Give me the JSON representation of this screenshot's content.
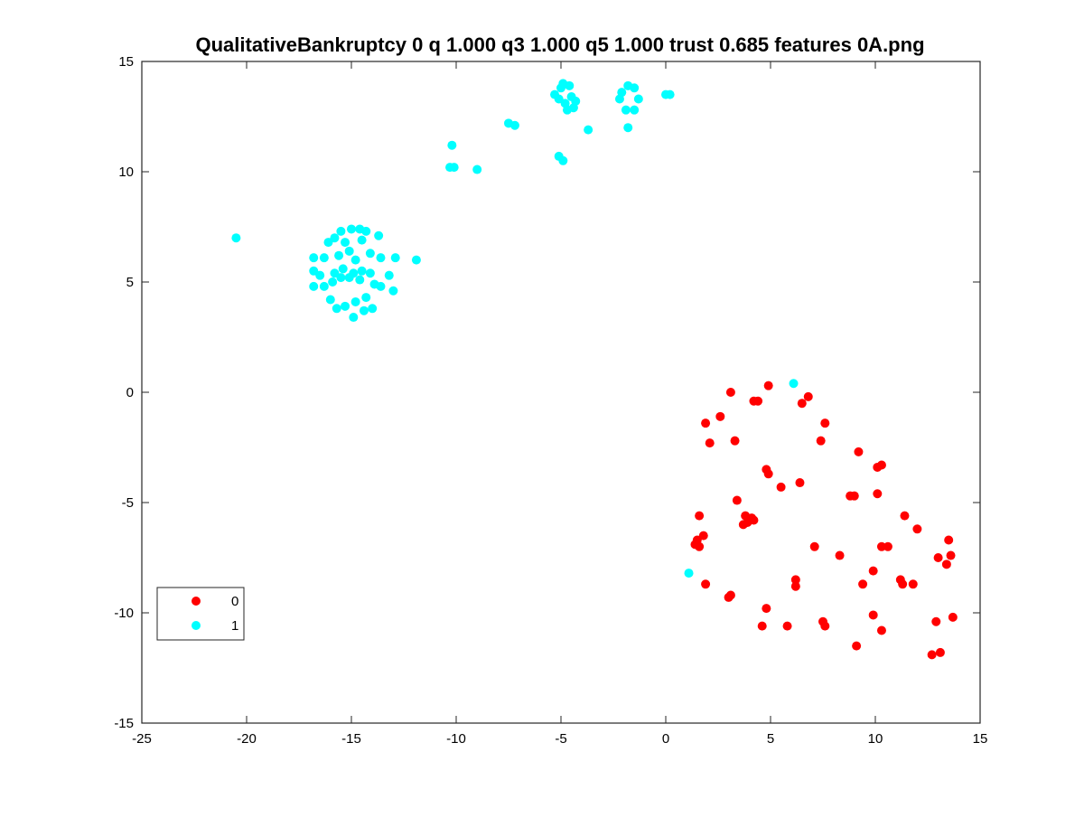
{
  "chart_data": {
    "type": "scatter",
    "title": "QualitativeBankruptcy 0 q 1.000 q3 1.000 q5 1.000 trust 0.685 features 0A.png",
    "xlabel": "",
    "ylabel": "",
    "xlim": [
      -25,
      15
    ],
    "ylim": [
      -15,
      15
    ],
    "xticks": [
      -25,
      -20,
      -15,
      -10,
      -5,
      0,
      5,
      10,
      15
    ],
    "yticks": [
      -15,
      -10,
      -5,
      0,
      5,
      10,
      15
    ],
    "grid": false,
    "legend_position": "bottom-left",
    "series": [
      {
        "name": "0",
        "color": "#ff0000",
        "points": [
          [
            3.1,
            0.0
          ],
          [
            4.9,
            0.3
          ],
          [
            4.2,
            -0.4
          ],
          [
            4.4,
            -0.4
          ],
          [
            6.8,
            -0.2
          ],
          [
            6.5,
            -0.5
          ],
          [
            1.9,
            -1.4
          ],
          [
            2.6,
            -1.1
          ],
          [
            7.6,
            -1.4
          ],
          [
            2.1,
            -2.3
          ],
          [
            3.3,
            -2.2
          ],
          [
            7.4,
            -2.2
          ],
          [
            9.2,
            -2.7
          ],
          [
            4.8,
            -3.5
          ],
          [
            4.9,
            -3.7
          ],
          [
            10.3,
            -3.3
          ],
          [
            10.1,
            -3.4
          ],
          [
            6.4,
            -4.1
          ],
          [
            5.5,
            -4.3
          ],
          [
            8.8,
            -4.7
          ],
          [
            9.0,
            -4.7
          ],
          [
            10.1,
            -4.6
          ],
          [
            3.4,
            -4.9
          ],
          [
            1.6,
            -5.6
          ],
          [
            3.8,
            -5.6
          ],
          [
            4.1,
            -5.7
          ],
          [
            3.9,
            -5.9
          ],
          [
            3.7,
            -6.0
          ],
          [
            4.2,
            -5.8
          ],
          [
            11.4,
            -5.6
          ],
          [
            12.0,
            -6.2
          ],
          [
            1.8,
            -6.5
          ],
          [
            1.5,
            -6.7
          ],
          [
            1.4,
            -6.9
          ],
          [
            1.6,
            -7.0
          ],
          [
            7.1,
            -7.0
          ],
          [
            10.3,
            -7.0
          ],
          [
            10.6,
            -7.0
          ],
          [
            13.5,
            -6.7
          ],
          [
            8.3,
            -7.4
          ],
          [
            13.0,
            -7.5
          ],
          [
            13.6,
            -7.4
          ],
          [
            13.4,
            -7.8
          ],
          [
            9.9,
            -8.1
          ],
          [
            6.2,
            -8.5
          ],
          [
            11.2,
            -8.5
          ],
          [
            1.9,
            -8.7
          ],
          [
            6.2,
            -8.8
          ],
          [
            9.4,
            -8.7
          ],
          [
            11.3,
            -8.7
          ],
          [
            11.8,
            -8.7
          ],
          [
            3.1,
            -9.2
          ],
          [
            3.0,
            -9.3
          ],
          [
            4.8,
            -9.8
          ],
          [
            9.9,
            -10.1
          ],
          [
            13.7,
            -10.2
          ],
          [
            7.5,
            -10.4
          ],
          [
            12.9,
            -10.4
          ],
          [
            4.6,
            -10.6
          ],
          [
            5.8,
            -10.6
          ],
          [
            7.6,
            -10.6
          ],
          [
            10.3,
            -10.8
          ],
          [
            9.1,
            -11.5
          ],
          [
            12.7,
            -11.9
          ],
          [
            13.1,
            -11.8
          ]
        ]
      },
      {
        "name": "1",
        "color": "#00ffff",
        "points": [
          [
            -5.3,
            13.5
          ],
          [
            -5.0,
            13.8
          ],
          [
            -4.9,
            14.0
          ],
          [
            -4.6,
            13.9
          ],
          [
            -5.1,
            13.3
          ],
          [
            -4.8,
            13.1
          ],
          [
            -4.5,
            13.4
          ],
          [
            -4.3,
            13.2
          ],
          [
            -4.7,
            12.8
          ],
          [
            -4.4,
            12.9
          ],
          [
            -2.1,
            13.6
          ],
          [
            -1.8,
            13.9
          ],
          [
            -1.5,
            13.8
          ],
          [
            -2.2,
            13.3
          ],
          [
            -1.3,
            13.3
          ],
          [
            -1.9,
            12.8
          ],
          [
            -1.5,
            12.8
          ],
          [
            0.0,
            13.5
          ],
          [
            0.2,
            13.5
          ],
          [
            -7.5,
            12.2
          ],
          [
            -7.2,
            12.1
          ],
          [
            -3.7,
            11.9
          ],
          [
            -1.8,
            12.0
          ],
          [
            -10.2,
            11.2
          ],
          [
            -10.3,
            10.2
          ],
          [
            -10.1,
            10.2
          ],
          [
            -9.0,
            10.1
          ],
          [
            -5.1,
            10.7
          ],
          [
            -4.9,
            10.5
          ],
          [
            -20.5,
            7.0
          ],
          [
            -11.9,
            6.0
          ],
          [
            -15.5,
            7.3
          ],
          [
            -15.0,
            7.4
          ],
          [
            -14.6,
            7.4
          ],
          [
            -14.3,
            7.3
          ],
          [
            -15.8,
            7.0
          ],
          [
            -15.3,
            6.8
          ],
          [
            -14.5,
            6.9
          ],
          [
            -13.7,
            7.1
          ],
          [
            -16.1,
            6.8
          ],
          [
            -16.8,
            6.1
          ],
          [
            -16.3,
            6.1
          ],
          [
            -15.6,
            6.2
          ],
          [
            -15.1,
            6.4
          ],
          [
            -14.8,
            6.0
          ],
          [
            -14.1,
            6.3
          ],
          [
            -13.6,
            6.1
          ],
          [
            -12.9,
            6.1
          ],
          [
            -16.8,
            5.5
          ],
          [
            -16.5,
            5.3
          ],
          [
            -15.8,
            5.4
          ],
          [
            -15.4,
            5.6
          ],
          [
            -14.9,
            5.4
          ],
          [
            -14.5,
            5.5
          ],
          [
            -14.1,
            5.4
          ],
          [
            -13.2,
            5.3
          ],
          [
            -15.5,
            5.2
          ],
          [
            -15.1,
            5.2
          ],
          [
            -16.8,
            4.8
          ],
          [
            -16.3,
            4.8
          ],
          [
            -15.9,
            5.0
          ],
          [
            -14.6,
            5.1
          ],
          [
            -13.9,
            4.9
          ],
          [
            -13.6,
            4.8
          ],
          [
            -13.0,
            4.6
          ],
          [
            -16.0,
            4.2
          ],
          [
            -15.3,
            3.9
          ],
          [
            -14.8,
            4.1
          ],
          [
            -14.3,
            4.3
          ],
          [
            -15.7,
            3.8
          ],
          [
            -14.4,
            3.7
          ],
          [
            -14.0,
            3.8
          ],
          [
            -14.9,
            3.4
          ],
          [
            6.1,
            0.4
          ],
          [
            1.1,
            -8.2
          ]
        ]
      }
    ]
  }
}
